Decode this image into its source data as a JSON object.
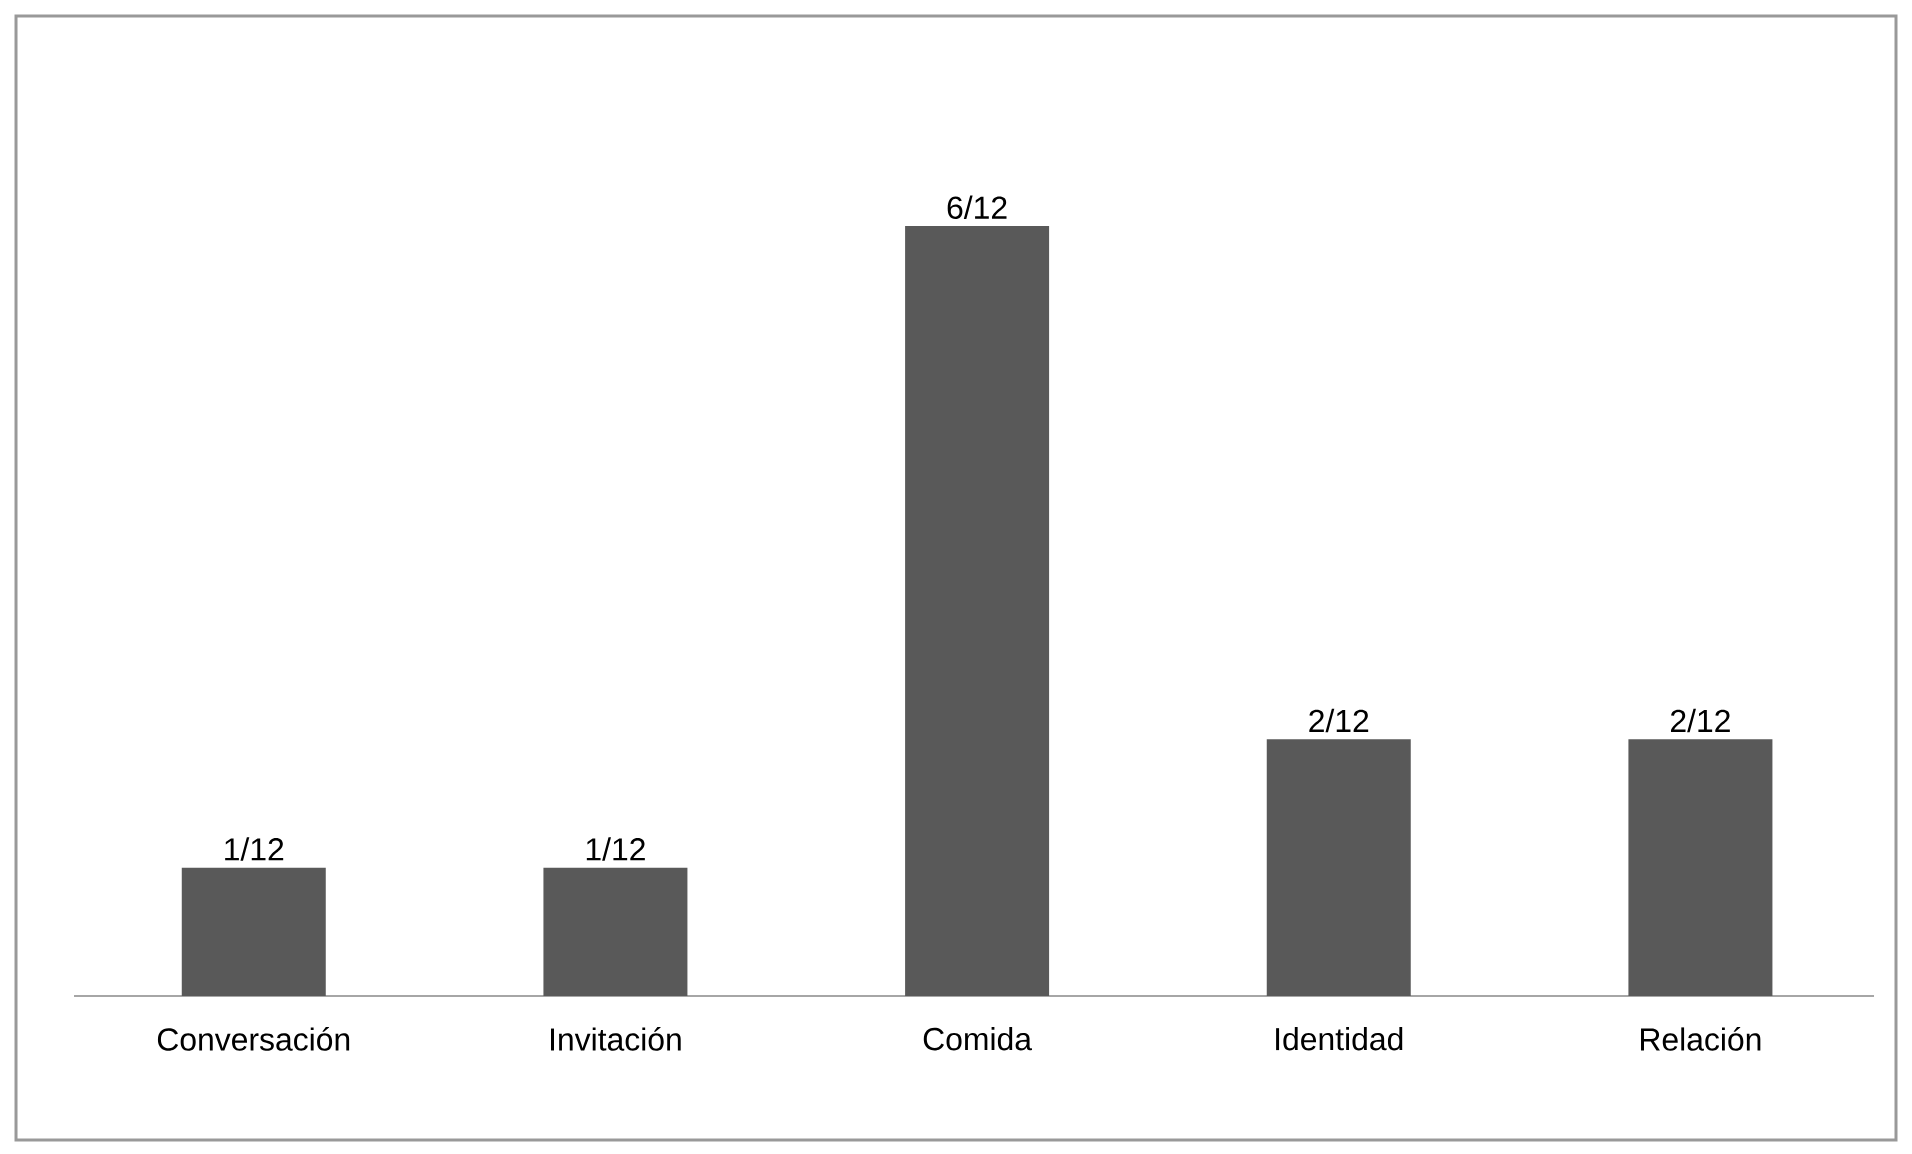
{
  "chart_data": {
    "type": "bar",
    "categories": [
      "Conversación",
      "Invitación",
      "Comida",
      "Identidad",
      "Relación"
    ],
    "values": [
      0.0833,
      0.0833,
      0.5,
      0.1667,
      0.1667
    ],
    "value_labels": [
      "1/12",
      "1/12",
      "6/12",
      "2/12",
      "2/12"
    ],
    "color": "#595959"
  }
}
